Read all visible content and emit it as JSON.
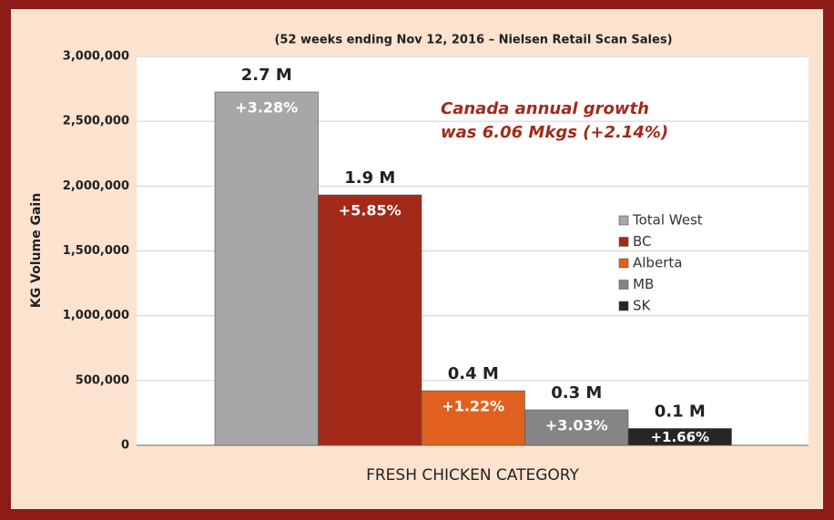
{
  "chart_data": {
    "type": "bar",
    "title": "(52 weeks ending Nov 12, 2016 – Nielsen Retail Scan Sales)",
    "y_label": "KG Volume Gain",
    "x_label": "FRESH CHICKEN CATEGORY",
    "annotation_lines": [
      "Canada annual growth",
      "was 6.06 Mkgs (+2.14%)"
    ],
    "ylim": [
      0,
      3000000
    ],
    "yticks": [
      0,
      {
        "value": 500000,
        "label": "500,000"
      },
      {
        "value": 1000000,
        "label": "1,000,000"
      },
      {
        "value": 1500000,
        "label": "1,500,000"
      },
      {
        "value": 2000000,
        "label": "2,000,000"
      },
      {
        "value": 2500000,
        "label": "2,500,000"
      },
      {
        "value": 3000000,
        "label": "3,000,000"
      }
    ],
    "grid": true,
    "legend": "right",
    "series": [
      {
        "name": "Total West",
        "color": "#a7a7a9",
        "values": [
          2726000
        ],
        "value_labels": [
          "2.7 M"
        ],
        "change_labels": [
          "+3.28%"
        ]
      },
      {
        "name": "BC",
        "color": "#a32a19",
        "values": [
          1932000
        ],
        "value_labels": [
          "1.9 M"
        ],
        "change_labels": [
          "+5.85%"
        ]
      },
      {
        "name": "Alberta",
        "color": "#e0611f",
        "values": [
          421000
        ],
        "value_labels": [
          "0.4 M"
        ],
        "change_labels": [
          "+1.22%"
        ]
      },
      {
        "name": "MB",
        "color": "#858585",
        "values": [
          274000
        ],
        "value_labels": [
          "0.3 M"
        ],
        "change_labels": [
          "+3.03%"
        ]
      },
      {
        "name": "SK",
        "color": "#262626",
        "values": [
          130000
        ],
        "value_labels": [
          "0.1 M"
        ],
        "change_labels": [
          "+1.66%"
        ]
      }
    ]
  }
}
